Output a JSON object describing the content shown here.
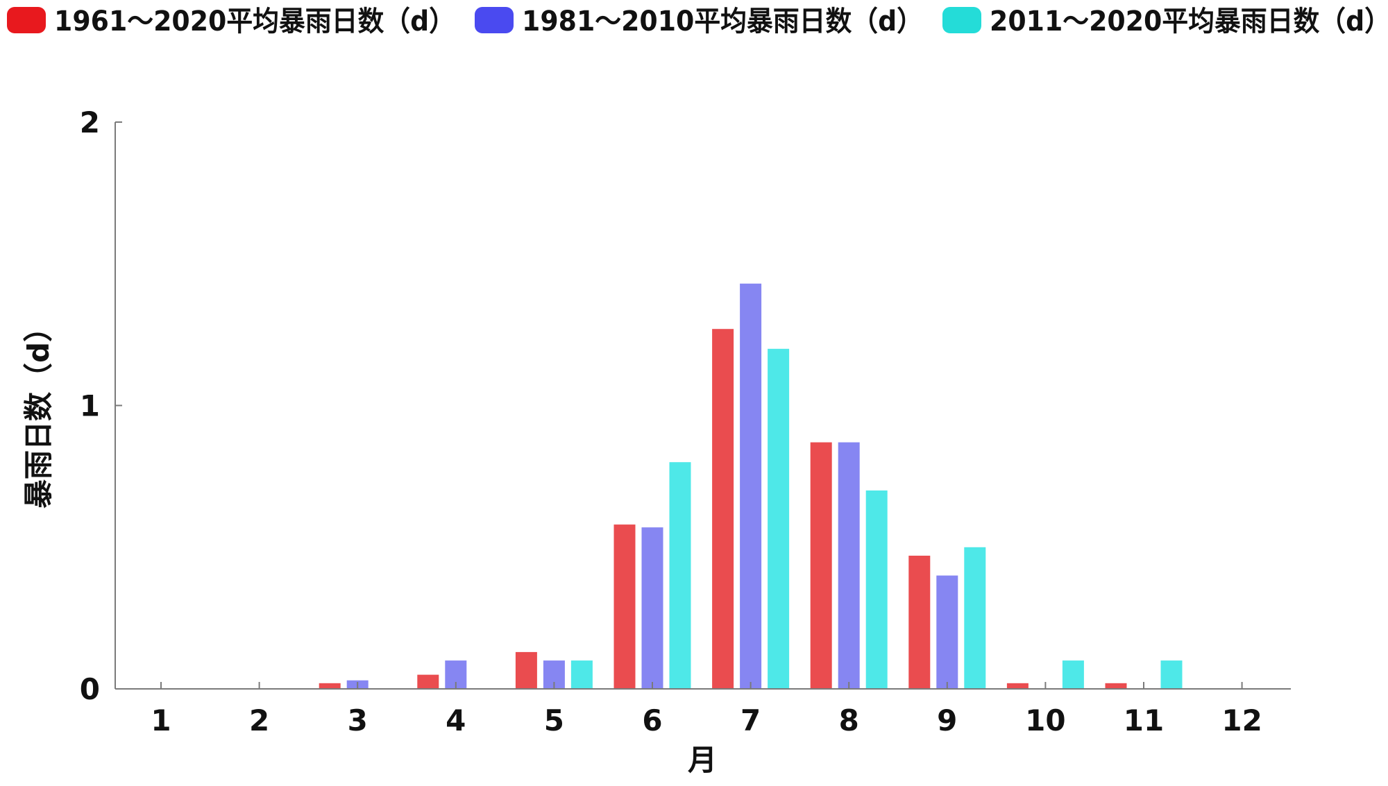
{
  "chart_data": {
    "type": "bar",
    "title": "",
    "xlabel": "月",
    "ylabel": "暴雨日数（d）",
    "categories": [
      "1",
      "2",
      "3",
      "4",
      "5",
      "6",
      "7",
      "8",
      "9",
      "10",
      "11",
      "12"
    ],
    "ylim": [
      0,
      2
    ],
    "yticks": [
      "0",
      "1",
      "2"
    ],
    "legend_position": "top",
    "grid": false,
    "series": [
      {
        "name": "1961～2020平均暴雨日数（d）",
        "legend_color": "#e8191e",
        "bar_color": "#ea4c4f",
        "values": [
          0,
          0,
          0.02,
          0.05,
          0.13,
          0.58,
          1.27,
          0.87,
          0.47,
          0.02,
          0.02,
          0
        ]
      },
      {
        "name": "1981～2010平均暴雨日数（d）",
        "legend_color": "#4a4af0",
        "bar_color": "#8686f2",
        "values": [
          0,
          0,
          0.03,
          0.1,
          0.1,
          0.57,
          1.43,
          0.87,
          0.4,
          0,
          0,
          0
        ]
      },
      {
        "name": "2011～2020平均暴雨日数（d）",
        "legend_color": "#24dcd8",
        "bar_color": "#4ee8e8",
        "values": [
          0,
          0,
          0,
          0,
          0.1,
          0.8,
          1.2,
          0.7,
          0.5,
          0.1,
          0.1,
          0
        ]
      }
    ]
  }
}
